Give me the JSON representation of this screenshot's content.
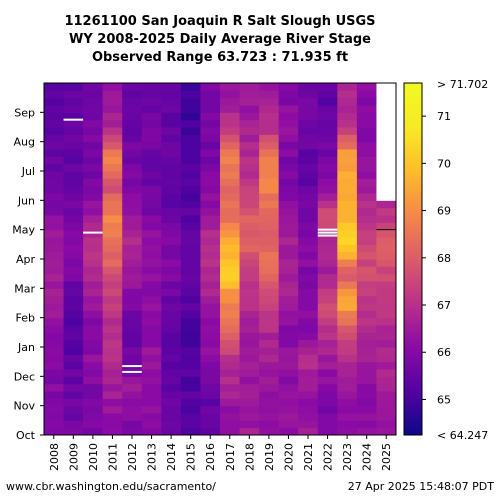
{
  "chart_data": {
    "type": "heatmap",
    "title_lines": [
      "11261100 San Joaquin R Salt Slough USGS",
      "WY 2008-2025 Daily Average River Stage",
      "Observed Range 63.723 : 71.935 ft"
    ],
    "x_categories": [
      "2008",
      "2009",
      "2010",
      "2011",
      "2012",
      "2013",
      "2014",
      "2015",
      "2016",
      "2017",
      "2018",
      "2019",
      "2020",
      "2021",
      "2022",
      "2023",
      "2024",
      "2025"
    ],
    "y_months": [
      "Oct",
      "Nov",
      "Dec",
      "Jan",
      "Feb",
      "Mar",
      "Apr",
      "May",
      "Jun",
      "Jul",
      "Aug",
      "Sep"
    ],
    "colorbar": {
      "ticks": [
        "65",
        "66",
        "67",
        "68",
        "69",
        "70",
        "71"
      ],
      "top_label": "> 71.702",
      "bottom_label": "< 64.247",
      "vmin": 64.247,
      "vmax": 71.702,
      "colormap": "plasma"
    },
    "value_unit": "ft",
    "monthly_stage_estimate": {
      "description_note": "rows follow x_categories, columns follow y_months (Oct..Sep)",
      "values": [
        [
          66.2,
          66.0,
          65.9,
          66.1,
          66.4,
          66.6,
          66.5,
          66.0,
          65.6,
          65.5,
          65.4,
          65.3
        ],
        [
          65.7,
          65.6,
          65.4,
          65.3,
          65.3,
          65.8,
          66.1,
          65.7,
          65.4,
          65.5,
          65.6,
          65.5
        ],
        [
          66.0,
          65.9,
          66.2,
          65.8,
          66.4,
          66.8,
          67.0,
          66.5,
          65.9,
          65.8,
          65.8,
          65.7
        ],
        [
          66.1,
          66.6,
          66.9,
          66.9,
          67.2,
          67.8,
          68.5,
          68.8,
          67.6,
          68.8,
          66.7,
          66.3
        ],
        [
          65.9,
          66.5,
          65.8,
          65.4,
          65.8,
          66.6,
          66.8,
          66.3,
          65.9,
          65.7,
          65.6,
          65.5
        ],
        [
          66.0,
          66.3,
          66.4,
          66.0,
          66.1,
          66.3,
          66.4,
          65.9,
          65.6,
          65.6,
          65.7,
          65.6
        ],
        [
          65.5,
          65.4,
          65.3,
          65.4,
          65.5,
          65.9,
          66.0,
          65.6,
          65.3,
          65.4,
          65.5,
          65.4
        ],
        [
          65.3,
          65.2,
          65.2,
          65.1,
          65.3,
          65.6,
          65.6,
          65.3,
          65.1,
          65.1,
          64.9,
          64.9
        ],
        [
          65.5,
          65.5,
          66.0,
          66.2,
          66.5,
          66.9,
          67.1,
          66.3,
          66.0,
          65.7,
          65.8,
          65.7
        ],
        [
          66.2,
          66.6,
          67.0,
          68.4,
          68.6,
          70.3,
          69.6,
          68.4,
          68.1,
          69.0,
          67.0,
          66.5
        ],
        [
          66.5,
          66.4,
          66.5,
          66.6,
          66.9,
          67.4,
          68.2,
          67.9,
          67.2,
          66.8,
          66.6,
          66.4
        ],
        [
          66.1,
          66.2,
          66.6,
          66.8,
          67.5,
          68.2,
          68.3,
          68.0,
          68.9,
          68.7,
          66.9,
          66.5
        ],
        [
          66.3,
          66.1,
          66.3,
          66.1,
          66.5,
          66.7,
          66.6,
          66.2,
          65.9,
          65.9,
          66.2,
          66.0
        ],
        [
          66.4,
          66.3,
          66.9,
          66.1,
          66.0,
          66.0,
          66.0,
          65.7,
          65.5,
          65.4,
          65.6,
          65.6
        ],
        [
          65.8,
          66.0,
          66.4,
          67.1,
          67.5,
          66.7,
          66.6,
          67.8,
          66.2,
          65.7,
          65.6,
          65.3
        ],
        [
          66.2,
          66.3,
          66.8,
          67.5,
          69.5,
          67.9,
          70.4,
          69.8,
          69.5,
          69.4,
          67.0,
          66.7
        ],
        [
          66.1,
          66.1,
          66.5,
          66.9,
          67.2,
          67.6,
          67.6,
          67.0,
          66.5,
          66.1,
          66.1,
          66.0
        ],
        [
          66.4,
          66.5,
          66.7,
          66.8,
          67.2,
          67.6,
          67.9,
          67.0,
          null,
          null,
          null,
          null
        ]
      ]
    }
  },
  "footer": {
    "left": "www.cbr.washington.edu/sacramento/",
    "right": "27 Apr 2025 15:48:07 PDT"
  }
}
